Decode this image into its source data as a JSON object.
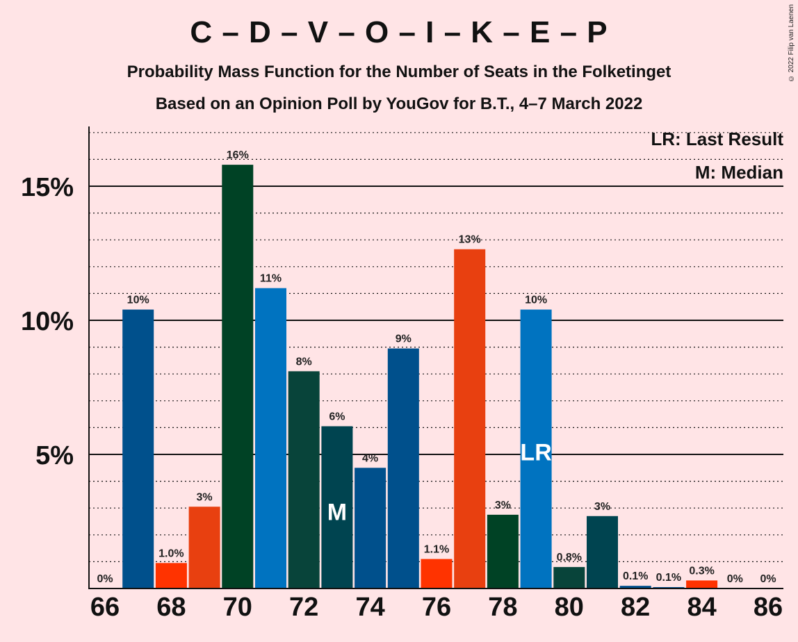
{
  "title": "C – D – V – O – I – K – E – P",
  "subtitle": "Probability Mass Function for the Number of Seats in the Folketinget",
  "subtitle2": "Based on an Opinion Poll by YouGov for B.T., 4–7 March 2022",
  "copyright": "© 2022 Filip van Laenen",
  "legend": {
    "lr": "LR: Last Result",
    "m": "M: Median"
  },
  "chart_data": {
    "type": "bar",
    "x": [
      66,
      67,
      68,
      69,
      70,
      71,
      72,
      73,
      74,
      75,
      76,
      77,
      78,
      79,
      80,
      81,
      82,
      83,
      84,
      85,
      86
    ],
    "values": [
      0,
      10.4,
      0.95,
      3.05,
      15.8,
      11.2,
      8.1,
      6.05,
      4.5,
      8.95,
      1.1,
      12.65,
      2.75,
      10.4,
      0.8,
      2.7,
      0.1,
      0.05,
      0.3,
      0,
      0
    ],
    "labels": [
      "0%",
      "10%",
      "1.0%",
      "3%",
      "16%",
      "11%",
      "8%",
      "6%",
      "4%",
      "9%",
      "1.1%",
      "13%",
      "3%",
      "10%",
      "0.8%",
      "3%",
      "0.1%",
      "0.1%",
      "0.3%",
      "0%",
      "0%"
    ],
    "colors": [
      "#00508C",
      "#00508C",
      "#FF3300",
      "#E84010",
      "#004225",
      "#0073C0",
      "#08443A",
      "#004450",
      "#00508C",
      "#00508C",
      "#FF3300",
      "#E84010",
      "#004225",
      "#0073C0",
      "#08443A",
      "#004450",
      "#00508C",
      "#00508C",
      "#FF3300",
      "#E84010",
      "#004225"
    ],
    "x_tick_labels": [
      "66",
      "68",
      "70",
      "72",
      "74",
      "76",
      "78",
      "80",
      "82",
      "84",
      "86"
    ],
    "y_tick_labels": [
      "5%",
      "10%",
      "15%"
    ],
    "y_ticks": [
      5,
      10,
      15
    ],
    "ylim": [
      0,
      17.2
    ],
    "median": 73,
    "median_label": "M",
    "last_result": 79,
    "last_result_label": "LR",
    "grid": "dotted every 1%, solid every 5%",
    "legend_placement": "top-right"
  }
}
